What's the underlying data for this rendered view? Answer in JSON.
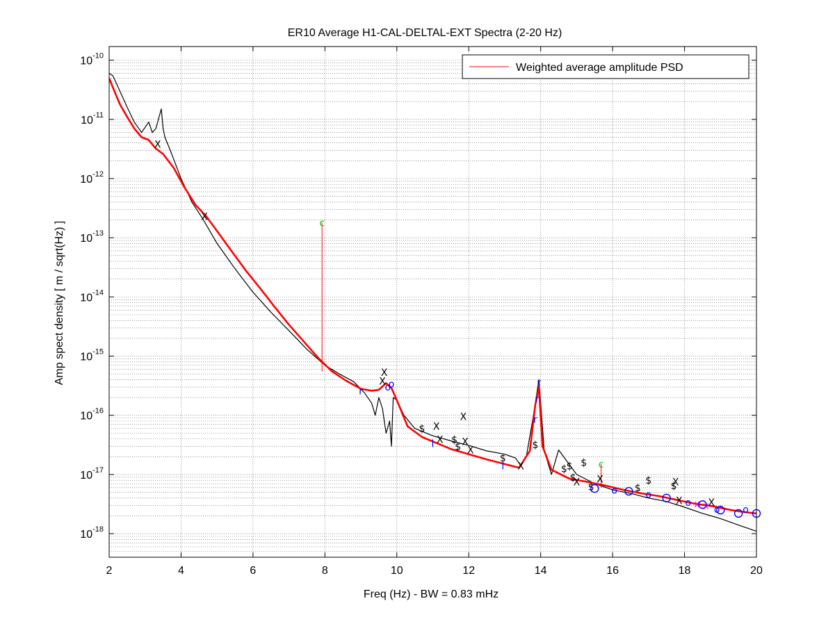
{
  "chart_data": {
    "type": "line",
    "title": "ER10 Average H1-CAL-DELTAL-EXT Spectra (2-20 Hz)",
    "xlabel": "Freq (Hz) - BW = 0.83 mHz",
    "ylabel": "Amp spect density [ m / sqrt(Hz) ]",
    "xlim": [
      2,
      20
    ],
    "ylim": [
      4e-19,
      1.7e-10
    ],
    "yscale": "log",
    "grid": true,
    "xticks": [
      "2",
      "4",
      "6",
      "8",
      "10",
      "12",
      "14",
      "16",
      "18",
      "20"
    ],
    "yticks": [
      {
        "base": "10",
        "exp": "-10"
      },
      {
        "base": "10",
        "exp": "-11"
      },
      {
        "base": "10",
        "exp": "-12"
      },
      {
        "base": "10",
        "exp": "-13"
      },
      {
        "base": "10",
        "exp": "-14"
      },
      {
        "base": "10",
        "exp": "-15"
      },
      {
        "base": "10",
        "exp": "-16"
      },
      {
        "base": "10",
        "exp": "-17"
      },
      {
        "base": "10",
        "exp": "-18"
      }
    ],
    "legend": {
      "position": "top-right",
      "entries": [
        {
          "label": "Weighted average amplitude PSD",
          "color": "#ff0000"
        }
      ]
    },
    "series": [
      {
        "name": "Weighted average amplitude PSD",
        "color": "#ff0000",
        "width": 2.6,
        "x": [
          2.0,
          2.1,
          2.3,
          2.5,
          2.7,
          2.9,
          3.1,
          3.3,
          3.5,
          3.8,
          4.1,
          4.4,
          4.7,
          5.0,
          5.4,
          5.8,
          6.2,
          6.6,
          7.0,
          7.4,
          7.8,
          8.2,
          8.6,
          9.0,
          9.3,
          9.5,
          9.7,
          9.85,
          10.0,
          10.3,
          10.7,
          11.1,
          11.5,
          12.0,
          12.5,
          13.0,
          13.4,
          13.7,
          13.85,
          13.95,
          14.05,
          14.3,
          14.8,
          15.3,
          15.8,
          16.3,
          16.8,
          17.3,
          17.8,
          18.3,
          18.8,
          19.3,
          19.7,
          20.0
        ],
        "y": [
          5e-11,
          3.5e-11,
          1.8e-11,
          1.1e-11,
          7e-12,
          5e-12,
          4.5e-12,
          3.2e-12,
          2.6e-12,
          1.5e-12,
          7e-13,
          3.6e-13,
          2.3e-13,
          1.3e-13,
          6e-14,
          2.8e-14,
          1.4e-14,
          6.8e-15,
          3.4e-15,
          1.8e-15,
          9.5e-16,
          5.5e-16,
          3.8e-16,
          2.8e-16,
          2.6e-16,
          2.7e-16,
          3.5e-16,
          2.9e-16,
          1.8e-16,
          6.5e-17,
          4.3e-17,
          3.4e-17,
          2.7e-17,
          2.2e-17,
          1.8e-17,
          1.5e-17,
          1.3e-17,
          2.5e-17,
          1.5e-16,
          3e-16,
          3e-17,
          1.2e-17,
          8.5e-18,
          7.5e-18,
          6.5e-18,
          5.5e-18,
          4.8e-18,
          4.3e-18,
          3.7e-18,
          3.2e-18,
          2.9e-18,
          2.5e-18,
          2.3e-18,
          2.2e-18
        ]
      },
      {
        "name": "",
        "color": "#000000",
        "width": 1.2,
        "x": [
          2.0,
          2.1,
          2.3,
          2.5,
          2.7,
          2.9,
          3.1,
          3.2,
          3.3,
          3.45,
          3.5,
          3.55,
          3.7,
          4.0,
          4.3,
          4.6,
          5.0,
          5.5,
          6.0,
          6.5,
          7.0,
          7.5,
          8.0,
          8.4,
          8.8,
          9.1,
          9.3,
          9.4,
          9.5,
          9.6,
          9.7,
          9.8,
          9.85,
          9.9,
          10.0,
          10.2,
          10.5,
          11.0,
          11.5,
          12.0,
          12.5,
          13.0,
          13.3,
          13.45,
          13.6,
          13.8,
          13.95,
          14.1,
          14.3,
          14.5,
          15.0,
          15.5,
          16.0,
          16.5,
          17.0,
          17.5,
          18.0,
          18.5,
          19.0,
          19.5,
          20.0
        ],
        "y": [
          6e-11,
          5.5e-11,
          3e-11,
          1.6e-11,
          9e-12,
          6e-12,
          9e-12,
          6e-12,
          7e-12,
          1.5e-11,
          7e-12,
          5e-12,
          3e-12,
          1e-12,
          4e-13,
          2.1e-13,
          8e-14,
          3e-14,
          1.2e-14,
          5.5e-15,
          2.7e-15,
          1.3e-15,
          7e-16,
          5e-16,
          3.7e-16,
          2.4e-16,
          1.6e-16,
          1e-16,
          2e-16,
          1.3e-16,
          5e-17,
          8e-17,
          3e-17,
          2e-16,
          1.8e-16,
          1e-16,
          6e-17,
          4.5e-17,
          3.7e-17,
          3.1e-17,
          2.5e-17,
          2.2e-17,
          1.9e-17,
          1.4e-17,
          2e-17,
          1e-16,
          4e-16,
          2.5e-17,
          1e-17,
          2.6e-17,
          1e-17,
          7e-18,
          5.5e-18,
          4.8e-18,
          4e-18,
          3.5e-18,
          2.8e-18,
          2.2e-18,
          1.8e-18,
          1.4e-18,
          1.1e-18
        ]
      }
    ],
    "stems": [
      {
        "x": 7.92,
        "y0": 5.5e-16,
        "y1": 1.8e-13,
        "color": "#ff0000"
      },
      {
        "x": 15.68,
        "y0": 6e-18,
        "y1": 1.5e-17,
        "color": "#ff0000"
      }
    ],
    "annotations": [
      {
        "x": 7.92,
        "y": 1.8e-13,
        "text": "c",
        "color": "#00cc00"
      },
      {
        "x": 15.68,
        "y": 1.5e-17,
        "text": "c",
        "color": "#00cc00"
      },
      {
        "x": 3.35,
        "y": 3.8e-12,
        "text": "X",
        "color": "#000000"
      },
      {
        "x": 4.65,
        "y": 2.3e-13,
        "text": "X",
        "color": "#000000"
      },
      {
        "x": 9.6,
        "y": 3.8e-16,
        "text": "X",
        "color": "#000000"
      },
      {
        "x": 9.65,
        "y": 5.3e-16,
        "text": "X",
        "color": "#000000"
      },
      {
        "x": 11.1,
        "y": 6.5e-17,
        "text": "X",
        "color": "#000000"
      },
      {
        "x": 11.2,
        "y": 3.9e-17,
        "text": "X",
        "color": "#000000"
      },
      {
        "x": 11.85,
        "y": 9.5e-17,
        "text": "X",
        "color": "#000000"
      },
      {
        "x": 11.9,
        "y": 3.6e-17,
        "text": "X",
        "color": "#000000"
      },
      {
        "x": 12.05,
        "y": 2.6e-17,
        "text": "X",
        "color": "#000000"
      },
      {
        "x": 13.45,
        "y": 1.4e-17,
        "text": "X",
        "color": "#000000"
      },
      {
        "x": 15.0,
        "y": 7.5e-18,
        "text": "X",
        "color": "#000000"
      },
      {
        "x": 15.65,
        "y": 8.4e-18,
        "text": "X",
        "color": "#000000"
      },
      {
        "x": 17.75,
        "y": 7.5e-18,
        "text": "X",
        "color": "#000000"
      },
      {
        "x": 17.85,
        "y": 3.6e-18,
        "text": "X",
        "color": "#000000"
      },
      {
        "x": 18.75,
        "y": 3.4e-18,
        "text": "X",
        "color": "#000000"
      },
      {
        "x": 10.7,
        "y": 6e-17,
        "text": "$",
        "color": "#000000"
      },
      {
        "x": 11.6,
        "y": 3.9e-17,
        "text": "$",
        "color": "#000000"
      },
      {
        "x": 11.7,
        "y": 3e-17,
        "text": "$",
        "color": "#000000"
      },
      {
        "x": 12.95,
        "y": 1.9e-17,
        "text": "$",
        "color": "#000000"
      },
      {
        "x": 13.85,
        "y": 3.2e-17,
        "text": "$",
        "color": "#000000"
      },
      {
        "x": 14.65,
        "y": 1.25e-17,
        "text": "$",
        "color": "#000000"
      },
      {
        "x": 14.8,
        "y": 1.4e-17,
        "text": "$",
        "color": "#000000"
      },
      {
        "x": 14.9,
        "y": 9e-18,
        "text": "$",
        "color": "#000000"
      },
      {
        "x": 15.2,
        "y": 1.6e-17,
        "text": "$",
        "color": "#000000"
      },
      {
        "x": 15.4,
        "y": 6.2e-18,
        "text": "$",
        "color": "#000000"
      },
      {
        "x": 16.7,
        "y": 6e-18,
        "text": "$",
        "color": "#000000"
      },
      {
        "x": 17.0,
        "y": 8e-18,
        "text": "$",
        "color": "#000000"
      },
      {
        "x": 17.7,
        "y": 6.5e-18,
        "text": "$",
        "color": "#000000"
      },
      {
        "x": 9.75,
        "y": 3e-16,
        "text": "o",
        "color": "#0000ff"
      },
      {
        "x": 9.85,
        "y": 3.4e-16,
        "text": "o",
        "color": "#0000ff"
      },
      {
        "x": 13.95,
        "y": 3.6e-16,
        "text": "r",
        "color": "#0000ff"
      },
      {
        "x": 13.85,
        "y": 8.5e-17,
        "text": "r",
        "color": "#0000ff"
      },
      {
        "x": 13.9,
        "y": 1.9e-16,
        "text": "r",
        "color": "#0000ff"
      },
      {
        "x": 9.0,
        "y": 2.6e-16,
        "text": "r",
        "color": "#0000ff"
      },
      {
        "x": 11.0,
        "y": 3.3e-17,
        "text": "l",
        "color": "#0000ff"
      },
      {
        "x": 12.95,
        "y": 1.4e-17,
        "text": "l",
        "color": "#0000ff"
      },
      {
        "x": 16.05,
        "y": 5.4e-18,
        "text": "o",
        "color": "#0000ff"
      },
      {
        "x": 17.0,
        "y": 4.6e-18,
        "text": "o",
        "color": "#0000ff"
      },
      {
        "x": 18.1,
        "y": 3.4e-18,
        "text": "o",
        "color": "#0000ff"
      },
      {
        "x": 18.9,
        "y": 2.6e-18,
        "text": "o",
        "color": "#0000ff"
      },
      {
        "x": 19.7,
        "y": 2.6e-18,
        "text": "o",
        "color": "#0000ff"
      },
      {
        "x": 18.35,
        "y": 3.2e-18,
        "text": "x",
        "color": "#ff00ff"
      },
      {
        "x": 18.6,
        "y": 3e-18,
        "text": "x",
        "color": "#ff00ff"
      }
    ],
    "circles": [
      {
        "x": 15.5,
        "y": 5.8e-18
      },
      {
        "x": 16.45,
        "y": 5.2e-18
      },
      {
        "x": 17.5,
        "y": 4e-18
      },
      {
        "x": 18.5,
        "y": 3.1e-18
      },
      {
        "x": 19.0,
        "y": 2.5e-18
      },
      {
        "x": 19.5,
        "y": 2.2e-18
      },
      {
        "x": 20.0,
        "y": 2.2e-18
      }
    ]
  }
}
